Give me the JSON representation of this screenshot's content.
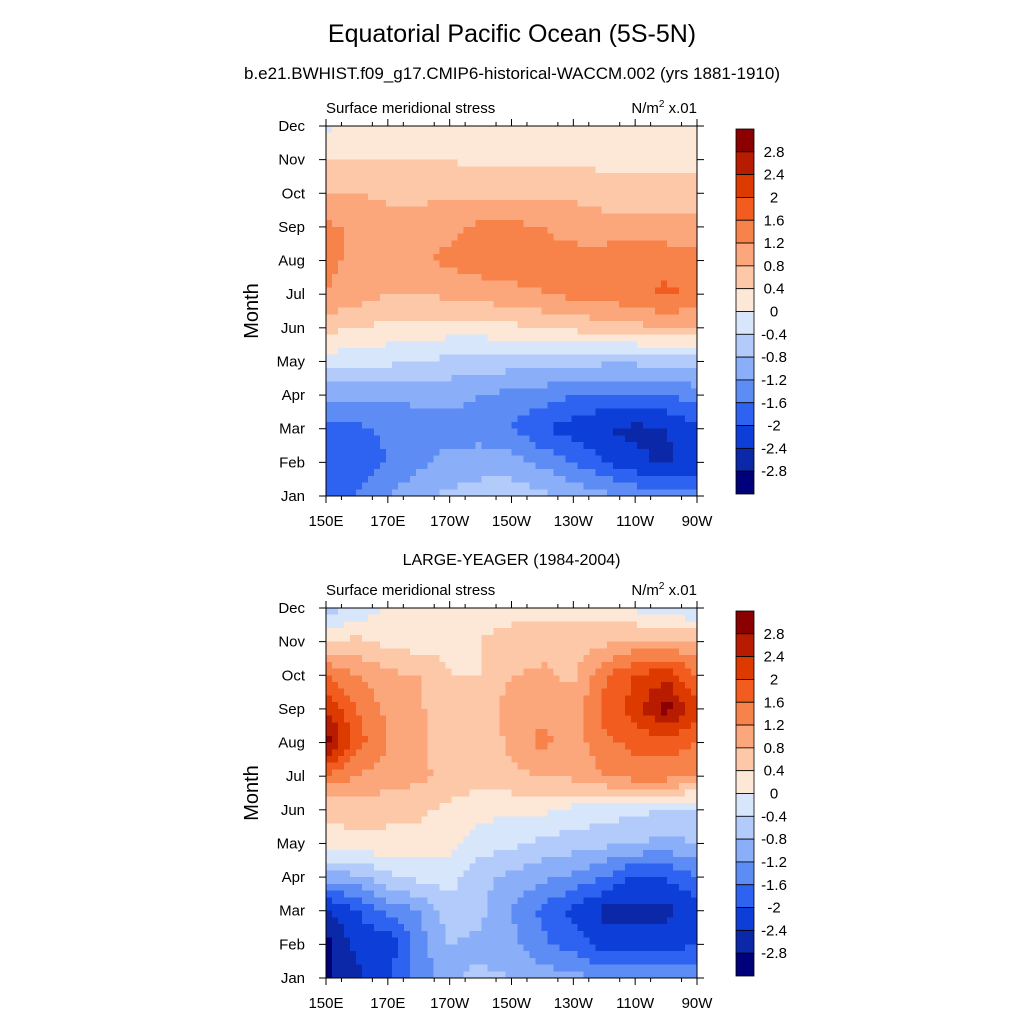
{
  "header": {
    "title": "Equatorial Pacific Ocean (5S-5N)",
    "subtitle": "b.e21.BWHIST.f09_g17.CMIP6-historical-WACCM.002 (yrs 1881-1910)"
  },
  "colorbar": {
    "labels": [
      "2.8",
      "2.4",
      "2",
      "1.6",
      "1.2",
      "0.8",
      "0.4",
      "0",
      "-0.4",
      "-0.8",
      "-1.2",
      "-1.6",
      "-2",
      "-2.4",
      "-2.8"
    ],
    "colors": [
      "#8b0000",
      "#b71c00",
      "#dd3a00",
      "#f25c1e",
      "#f7824a",
      "#fba77b",
      "#fdc8a8",
      "#fde7d6",
      "#d7e6fb",
      "#b2cbfb",
      "#8aaef8",
      "#5e8cf5",
      "#2e62f0",
      "#0d3fd8",
      "#0b28a8",
      "#00007a"
    ]
  },
  "chart_data": [
    {
      "type": "heatmap",
      "title": "",
      "left_label": "Surface meridional stress",
      "right_label": "N/m",
      "right_label_sup": "2",
      "right_label_suffix": " x.01",
      "xlabel": "",
      "ylabel": "Month",
      "x_ticks": [
        "150E",
        "170E",
        "170W",
        "150W",
        "130W",
        "110W",
        "90W"
      ],
      "y_ticks": [
        "Jan",
        "Feb",
        "Mar",
        "Apr",
        "May",
        "Jun",
        "Jul",
        "Aug",
        "Sep",
        "Oct",
        "Nov",
        "Dec"
      ],
      "x_lon": [
        150,
        160,
        170,
        180,
        190,
        200,
        210,
        220,
        230,
        240,
        250,
        260,
        270
      ],
      "z": [
        [
          -1.7,
          -1.6,
          -1.2,
          -0.9,
          -0.7,
          -0.6,
          -0.6,
          -0.7,
          -0.9,
          -1.1,
          -1.3,
          -1.5,
          -1.5
        ],
        [
          -1.8,
          -1.8,
          -1.6,
          -1.3,
          -1.1,
          -1.0,
          -1.0,
          -1.3,
          -1.6,
          -2.0,
          -2.3,
          -2.5,
          -2.2
        ],
        [
          -1.8,
          -1.7,
          -1.5,
          -1.4,
          -1.3,
          -1.4,
          -1.6,
          -2.0,
          -2.2,
          -2.4,
          -2.5,
          -2.4,
          -2.1
        ],
        [
          -1.1,
          -1.1,
          -1.1,
          -1.1,
          -1.1,
          -1.2,
          -1.3,
          -1.4,
          -1.6,
          -1.7,
          -1.7,
          -1.6,
          -1.4
        ],
        [
          -0.2,
          -0.2,
          -0.3,
          -0.4,
          -0.5,
          -0.5,
          -0.6,
          -0.6,
          -0.7,
          -0.7,
          -0.7,
          -0.7,
          -0.6
        ],
        [
          0.5,
          0.4,
          0.3,
          0.3,
          0.2,
          0.2,
          0.3,
          0.4,
          0.5,
          0.6,
          0.7,
          0.8,
          0.8
        ],
        [
          1.2,
          1.0,
          0.8,
          0.8,
          0.9,
          1.0,
          1.1,
          1.2,
          1.3,
          1.4,
          1.5,
          1.7,
          1.5
        ],
        [
          1.3,
          1.1,
          1.0,
          1.1,
          1.3,
          1.4,
          1.4,
          1.3,
          1.3,
          1.4,
          1.5,
          1.4,
          1.3
        ],
        [
          1.3,
          1.1,
          1.0,
          1.0,
          1.1,
          1.3,
          1.3,
          1.2,
          1.1,
          1.0,
          1.0,
          1.0,
          1.0
        ],
        [
          0.8,
          0.8,
          0.7,
          0.7,
          0.7,
          0.7,
          0.7,
          0.7,
          0.7,
          0.6,
          0.6,
          0.6,
          0.6
        ],
        [
          0.4,
          0.4,
          0.4,
          0.4,
          0.4,
          0.3,
          0.3,
          0.3,
          0.3,
          0.3,
          0.3,
          0.3,
          0.3
        ],
        [
          -0.1,
          0.1,
          0.2,
          0.3,
          0.3,
          0.3,
          0.3,
          0.3,
          0.3,
          0.3,
          0.3,
          0.3,
          0.3
        ]
      ]
    },
    {
      "type": "heatmap",
      "title": "LARGE-YEAGER (1984-2004)",
      "left_label": "Surface meridional stress",
      "right_label": "N/m",
      "right_label_sup": "2",
      "right_label_suffix": " x.01",
      "xlabel": "",
      "ylabel": "Month",
      "x_ticks": [
        "150E",
        "170E",
        "170W",
        "150W",
        "130W",
        "110W",
        "90W"
      ],
      "y_ticks": [
        "Jan",
        "Feb",
        "Mar",
        "Apr",
        "May",
        "Jun",
        "Jul",
        "Aug",
        "Sep",
        "Oct",
        "Nov",
        "Dec"
      ],
      "x_lon": [
        150,
        160,
        170,
        180,
        190,
        200,
        210,
        220,
        230,
        240,
        250,
        260,
        270
      ],
      "z": [
        [
          -2.9,
          -2.5,
          -2.0,
          -1.5,
          -0.9,
          -0.7,
          -0.8,
          -1.0,
          -1.1,
          -1.2,
          -1.3,
          -1.2,
          -1.2
        ],
        [
          -2.9,
          -2.3,
          -2.3,
          -1.4,
          -0.8,
          -0.9,
          -1.1,
          -1.5,
          -1.8,
          -2.2,
          -2.3,
          -2.2,
          -2.0
        ],
        [
          -2.5,
          -2.0,
          -1.5,
          -1.2,
          -0.6,
          -0.7,
          -1.2,
          -1.7,
          -2.1,
          -2.5,
          -2.5,
          -2.5,
          -2.2
        ],
        [
          -1.0,
          -0.9,
          -0.5,
          -0.3,
          -0.2,
          -0.7,
          -0.9,
          -1.1,
          -1.3,
          -1.6,
          -2.1,
          -2.0,
          -1.6
        ],
        [
          0.2,
          0.3,
          0.3,
          0.2,
          0.1,
          -0.2,
          -0.3,
          -0.5,
          -0.6,
          -0.7,
          -0.8,
          -0.9,
          -0.8
        ],
        [
          0.5,
          0.6,
          0.5,
          0.5,
          0.3,
          0.1,
          0.1,
          0.1,
          -0.1,
          -0.2,
          -0.3,
          -0.4,
          -0.5
        ],
        [
          1.5,
          1.2,
          1.0,
          0.9,
          0.7,
          0.6,
          0.7,
          0.8,
          0.9,
          1.2,
          1.4,
          1.4,
          1.2
        ],
        [
          3.0,
          1.8,
          1.2,
          0.9,
          0.4,
          0.5,
          0.9,
          1.3,
          1.0,
          1.5,
          1.7,
          1.8,
          1.6
        ],
        [
          2.4,
          1.6,
          1.1,
          0.9,
          0.4,
          0.5,
          1.0,
          1.1,
          1.0,
          1.7,
          2.2,
          3.0,
          2.1
        ],
        [
          1.6,
          1.2,
          0.9,
          0.8,
          0.4,
          0.4,
          0.8,
          0.9,
          0.7,
          1.5,
          2.0,
          2.3,
          1.6
        ],
        [
          0.4,
          0.5,
          0.3,
          0.2,
          0.3,
          0.4,
          0.5,
          0.6,
          0.6,
          0.7,
          0.9,
          0.9,
          0.8
        ],
        [
          -0.6,
          -0.3,
          0.1,
          0.2,
          0.2,
          0.3,
          0.3,
          0.3,
          0.3,
          0.2,
          -0.1,
          -0.3,
          -0.4
        ]
      ]
    }
  ]
}
